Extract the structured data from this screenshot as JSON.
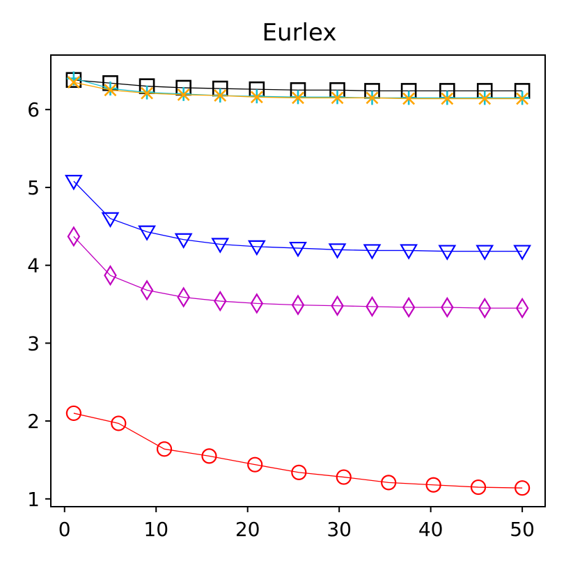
{
  "chart_data": {
    "type": "line",
    "title": "Eurlex",
    "xlabel": "",
    "ylabel": "",
    "xlim": [
      -1.5,
      52.5
    ],
    "ylim": [
      0.9,
      6.7
    ],
    "x_ticks": [
      0,
      10,
      20,
      30,
      40,
      50
    ],
    "y_ticks": [
      1,
      2,
      3,
      4,
      5,
      6
    ],
    "grid": false,
    "series": [
      {
        "color": "#000000",
        "marker": "square",
        "x": [
          1,
          5,
          9,
          13,
          17,
          21,
          25.5,
          29.8,
          33.6,
          37.6,
          41.8,
          45.9,
          50
        ],
        "y": [
          6.38,
          6.34,
          6.3,
          6.28,
          6.27,
          6.26,
          6.25,
          6.25,
          6.24,
          6.24,
          6.24,
          6.24,
          6.24
        ]
      },
      {
        "color": "#17becf",
        "marker": "plus",
        "x": [
          1,
          5,
          9,
          13,
          17,
          21,
          25.5,
          29.8,
          33.6,
          37.6,
          41.8,
          45.9,
          50
        ],
        "y": [
          6.4,
          6.27,
          6.22,
          6.2,
          6.18,
          6.17,
          6.16,
          6.16,
          6.15,
          6.15,
          6.15,
          6.15,
          6.15
        ]
      },
      {
        "color": "#ffa500",
        "marker": "x",
        "x": [
          1,
          5,
          9,
          13,
          17,
          21,
          25.5,
          29.8,
          33.6,
          37.6,
          41.8,
          45.9,
          50
        ],
        "y": [
          6.35,
          6.25,
          6.21,
          6.19,
          6.18,
          6.16,
          6.15,
          6.15,
          6.15,
          6.14,
          6.14,
          6.14,
          6.14
        ]
      },
      {
        "color": "#0000ff",
        "marker": "triangle-down",
        "x": [
          1,
          5,
          9,
          13,
          17,
          21,
          25.5,
          29.8,
          33.6,
          37.6,
          41.8,
          45.9,
          50
        ],
        "y": [
          5.08,
          4.6,
          4.43,
          4.33,
          4.27,
          4.24,
          4.22,
          4.2,
          4.19,
          4.19,
          4.18,
          4.18,
          4.18
        ]
      },
      {
        "color": "#bf00bf",
        "marker": "diamond",
        "x": [
          1,
          5,
          9,
          13,
          17,
          21,
          25.5,
          29.8,
          33.6,
          37.6,
          41.8,
          45.9,
          50
        ],
        "y": [
          4.37,
          3.87,
          3.68,
          3.59,
          3.54,
          3.51,
          3.49,
          3.48,
          3.47,
          3.46,
          3.46,
          3.45,
          3.45
        ]
      },
      {
        "color": "#ff0000",
        "marker": "circle",
        "x": [
          1,
          5.9,
          10.9,
          15.8,
          20.8,
          25.6,
          30.5,
          35.4,
          40.3,
          45.2,
          50
        ],
        "y": [
          2.1,
          1.97,
          1.64,
          1.55,
          1.44,
          1.34,
          1.28,
          1.21,
          1.18,
          1.15,
          1.14
        ]
      }
    ]
  }
}
